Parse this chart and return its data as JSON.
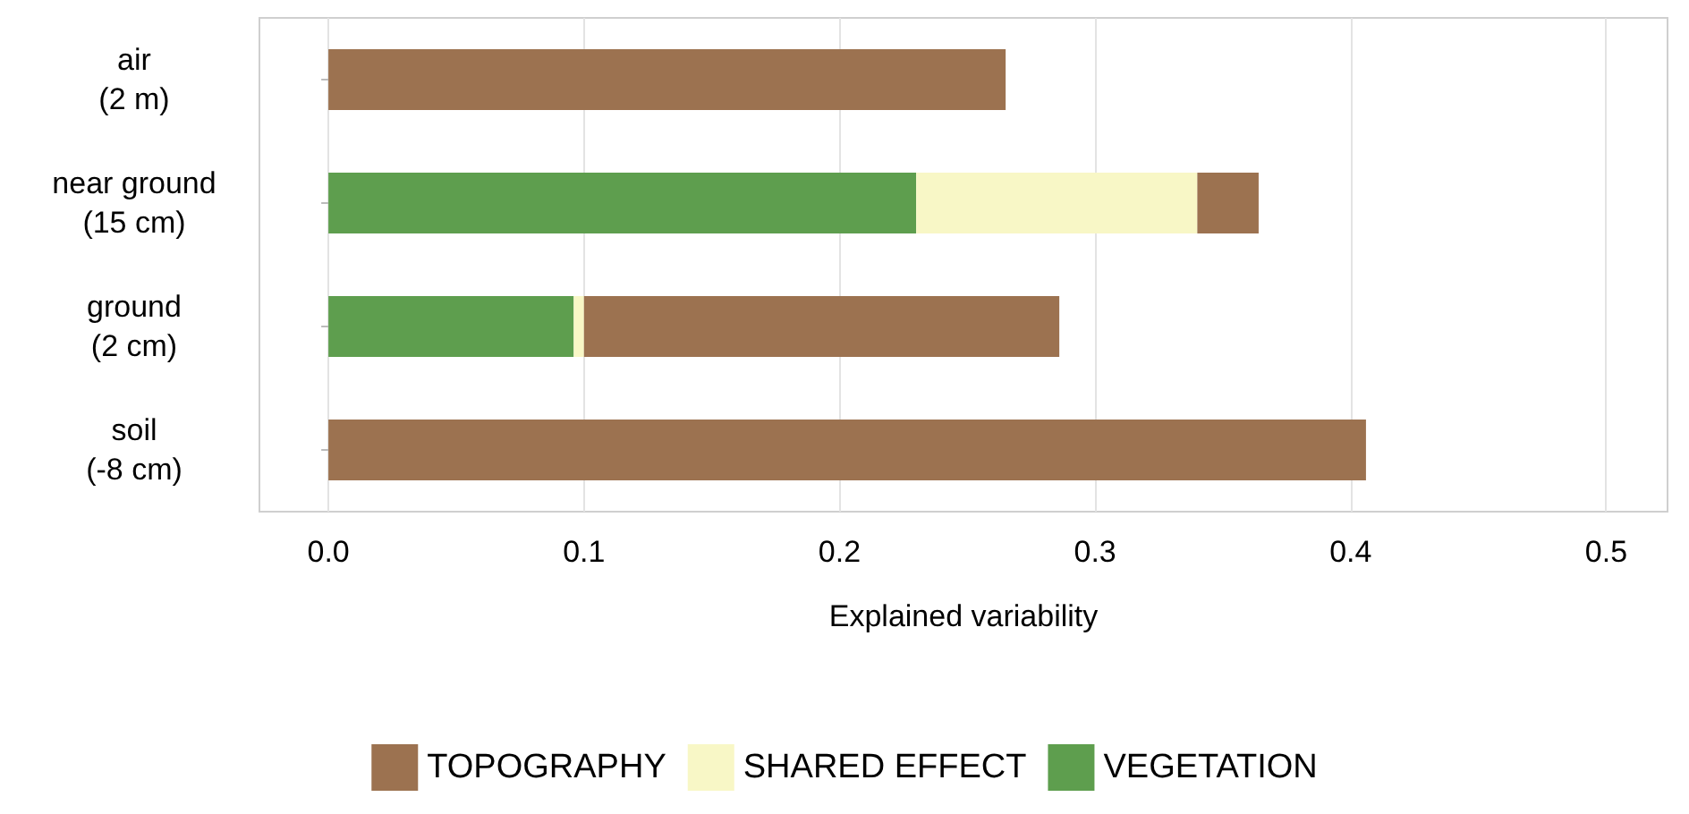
{
  "chart_data": {
    "type": "bar",
    "orientation": "horizontal",
    "stacked": true,
    "xlabel": "Explained variability",
    "categories": [
      "air\n(2 m)",
      "near ground\n(15 cm)",
      "ground\n(2 cm)",
      "soil\n(-8 cm)"
    ],
    "series": [
      {
        "name": "VEGETATION",
        "color": "#5e9e4e",
        "values": [
          null,
          0.23,
          0.096,
          null
        ]
      },
      {
        "name": "SHARED EFFECT",
        "color": "#f8f7c6",
        "values": [
          null,
          0.11,
          0.004,
          null
        ]
      },
      {
        "name": "TOPOGRAPHY",
        "color": "#9c7250",
        "values": [
          0.265,
          0.024,
          0.186,
          0.406
        ]
      }
    ],
    "xlim": [
      -0.027,
      0.524
    ],
    "xticks": [
      {
        "value": 0,
        "label": "0.0"
      },
      {
        "value": 0.1,
        "label": "0.1"
      },
      {
        "value": 0.2,
        "label": "0.2"
      },
      {
        "value": 0.3,
        "label": "0.3"
      },
      {
        "value": 0.4,
        "label": "0.4"
      },
      {
        "value": 0.5,
        "label": "0.5"
      }
    ],
    "grid": "x",
    "legend": "bottom"
  }
}
